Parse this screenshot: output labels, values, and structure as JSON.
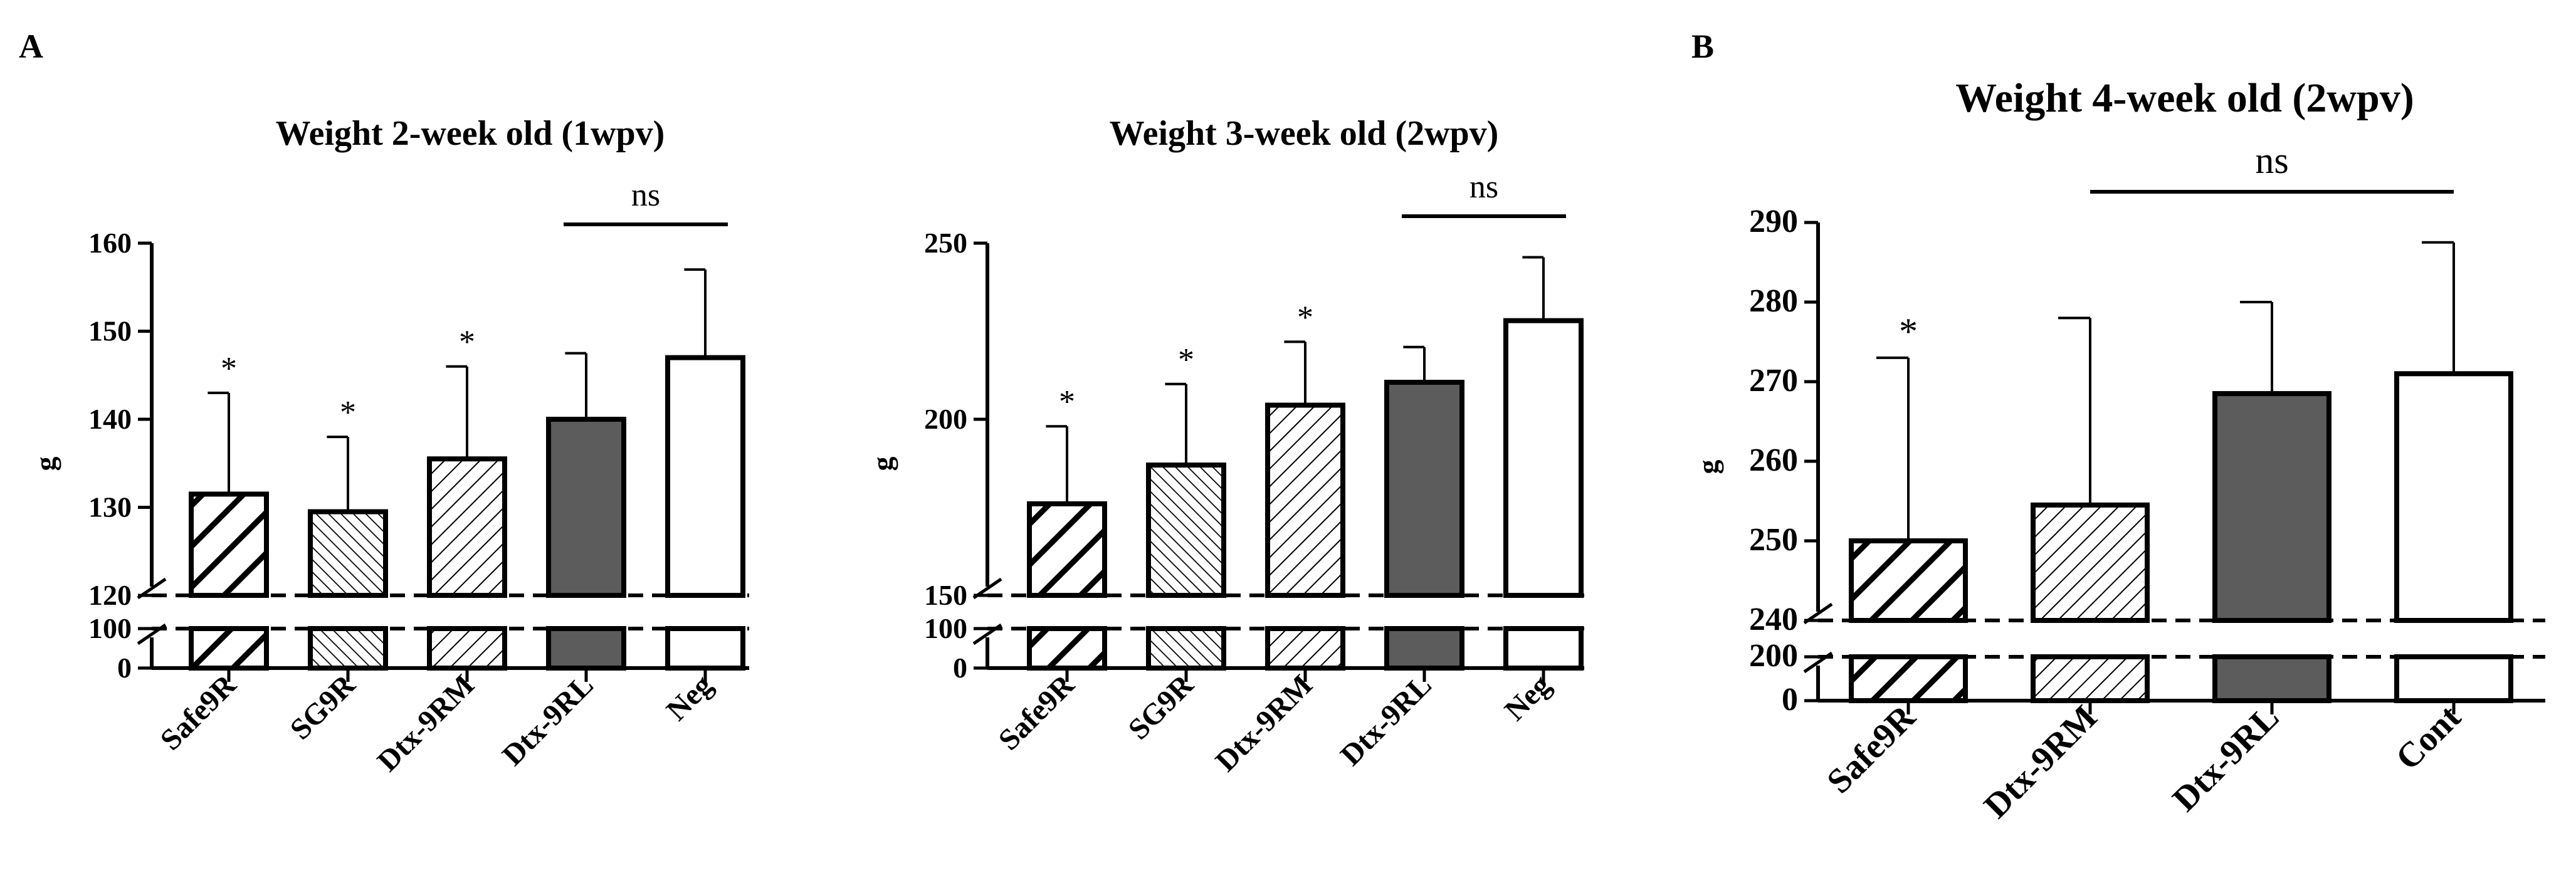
{
  "figure": {
    "panel_a_label": "A",
    "panel_b_label": "B"
  },
  "chart_data": [
    {
      "type": "bar",
      "panel": "A",
      "title": "Weight 2-week old (1wpv)",
      "xlabel": "",
      "ylabel": "g",
      "categories": [
        "Safe9R",
        "SG9R",
        "Dtx-9RM",
        "Dtx-9RL",
        "Neg"
      ],
      "values": [
        131.5,
        129.5,
        135.5,
        140.0,
        147.0
      ],
      "errors_upper": [
        143.0,
        138.0,
        146.0,
        147.5,
        157.0
      ],
      "fills": [
        "hatch-thick",
        "hatch-fine",
        "hatch-medium",
        "solid-gray",
        "white"
      ],
      "annotations": [
        "*",
        "*",
        "*",
        "",
        ""
      ],
      "bracket": {
        "from": "Dtx-9RL",
        "to": "Neg",
        "label": "ns"
      },
      "ylim": [
        0,
        160
      ],
      "axis_break": [
        100,
        120
      ],
      "yticks_lower": [
        0,
        100
      ],
      "yticks_upper": [
        120,
        130,
        140,
        150,
        160
      ]
    },
    {
      "type": "bar",
      "panel": "A",
      "title": "Weight 3-week old (2wpv)",
      "xlabel": "",
      "ylabel": "g",
      "categories": [
        "Safe9R",
        "SG9R",
        "Dtx-9RM",
        "Dtx-9RL",
        "Neg"
      ],
      "values": [
        176.0,
        187.0,
        204.0,
        210.5,
        228.0
      ],
      "errors_upper": [
        198.0,
        210.0,
        222.0,
        220.5,
        246.0
      ],
      "fills": [
        "hatch-thick",
        "hatch-fine",
        "hatch-medium",
        "solid-gray",
        "white"
      ],
      "annotations": [
        "*",
        "*",
        "*",
        "",
        ""
      ],
      "bracket": {
        "from": "Dtx-9RL",
        "to": "Neg",
        "label": "ns"
      },
      "ylim": [
        0,
        250
      ],
      "axis_break": [
        100,
        150
      ],
      "yticks_lower": [
        0,
        100
      ],
      "yticks_upper": [
        150,
        200,
        250
      ]
    },
    {
      "type": "bar",
      "panel": "B",
      "title": "Weight 4-week old (2wpv)",
      "xlabel": "",
      "ylabel": "g",
      "categories": [
        "Safe9R",
        "Dtx-9RM",
        "Dtx-9RL",
        "Cont"
      ],
      "values": [
        250.0,
        254.5,
        268.5,
        271.0
      ],
      "errors_upper": [
        273.0,
        278.0,
        280.0,
        287.5
      ],
      "fills": [
        "hatch-thick",
        "hatch-medium",
        "solid-gray",
        "white"
      ],
      "annotations": [
        "*",
        "",
        "",
        ""
      ],
      "bracket": {
        "from": "Dtx-9RM",
        "to": "Cont",
        "label": "ns"
      },
      "ylim": [
        0,
        290
      ],
      "axis_break": [
        200,
        240
      ],
      "yticks_lower": [
        0,
        200
      ],
      "yticks_upper": [
        240,
        250,
        260,
        270,
        280,
        290
      ]
    }
  ]
}
